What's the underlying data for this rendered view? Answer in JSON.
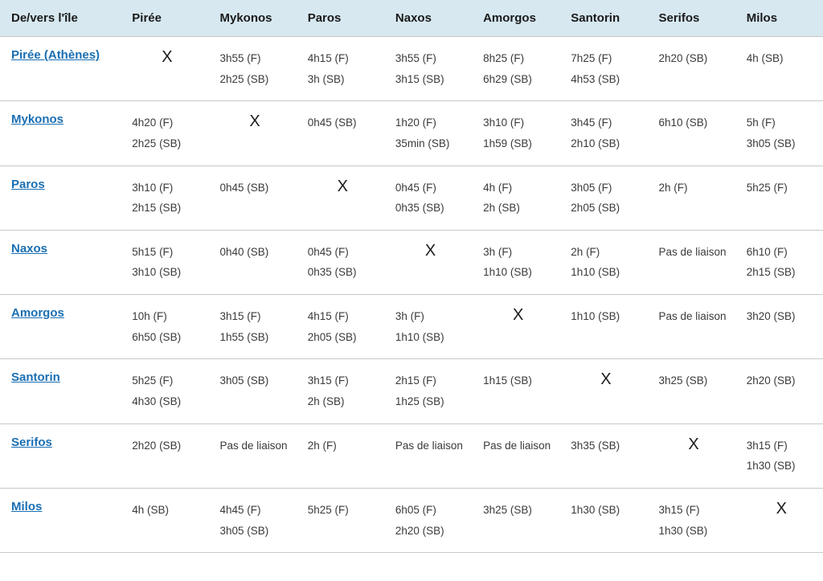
{
  "table": {
    "header_bg": "#d7e8f0",
    "border_color": "#c8c8c8",
    "link_color": "#1a6fb3",
    "text_color": "#2a2a2a",
    "font_family": "Segoe UI",
    "corner_label": "De/vers l'île",
    "columns": [
      "Pirée",
      "Mykonos",
      "Paros",
      "Naxos",
      "Amorgos",
      "Santorin",
      "Serifos",
      "Milos"
    ],
    "x_mark": "X",
    "rows": [
      {
        "label": "Pirée (Athènes)",
        "cells": [
          "X",
          [
            "3h55 (F)",
            "2h25 (SB)"
          ],
          [
            "4h15 (F)",
            "3h (SB)"
          ],
          [
            "3h55 (F)",
            "3h15 (SB)"
          ],
          [
            "8h25 (F)",
            "6h29 (SB)"
          ],
          [
            "7h25 (F)",
            "4h53 (SB)"
          ],
          [
            "2h20 (SB)"
          ],
          [
            "4h (SB)"
          ]
        ]
      },
      {
        "label": "Mykonos",
        "cells": [
          [
            "4h20 (F)",
            "2h25 (SB)"
          ],
          "X",
          [
            "0h45 (SB)"
          ],
          [
            "1h20 (F)",
            "35min (SB)"
          ],
          [
            "3h10 (F)",
            "1h59 (SB)"
          ],
          [
            "3h45 (F)",
            "2h10 (SB)"
          ],
          [
            "6h10 (SB)"
          ],
          [
            "5h (F)",
            "3h05 (SB)"
          ]
        ]
      },
      {
        "label": "Paros",
        "cells": [
          [
            "3h10 (F)",
            "2h15 (SB)"
          ],
          [
            "0h45 (SB)"
          ],
          "X",
          [
            "0h45 (F)",
            "0h35 (SB)"
          ],
          [
            "4h (F)",
            "2h (SB)"
          ],
          [
            "3h05 (F)",
            "2h05 (SB)"
          ],
          [
            "2h (F)"
          ],
          [
            "5h25 (F)"
          ]
        ]
      },
      {
        "label": "Naxos",
        "cells": [
          [
            "5h15 (F)",
            "3h10 (SB)"
          ],
          [
            "0h40 (SB)"
          ],
          [
            "0h45 (F)",
            "0h35 (SB)"
          ],
          "X",
          [
            "3h (F)",
            "1h10 (SB)"
          ],
          [
            "2h (F)",
            "1h10 (SB)"
          ],
          [
            "Pas de liaison"
          ],
          [
            "6h10 (F)",
            "2h15 (SB)"
          ]
        ]
      },
      {
        "label": "Amorgos",
        "cells": [
          [
            "10h (F)",
            "6h50 (SB)"
          ],
          [
            "3h15 (F)",
            "1h55 (SB)"
          ],
          [
            "4h15 (F)",
            "2h05 (SB)"
          ],
          [
            "3h (F)",
            "1h10 (SB)"
          ],
          "X",
          [
            "1h10 (SB)"
          ],
          [
            "Pas de liaison"
          ],
          [
            "3h20 (SB)"
          ]
        ]
      },
      {
        "label": "Santorin",
        "cells": [
          [
            "5h25 (F)",
            "4h30 (SB)"
          ],
          [
            "3h05 (SB)"
          ],
          [
            "3h15 (F)",
            "2h (SB)"
          ],
          [
            "2h15 (F)",
            "1h25 (SB)"
          ],
          [
            "1h15 (SB)"
          ],
          "X",
          [
            "3h25 (SB)"
          ],
          [
            "2h20 (SB)"
          ]
        ]
      },
      {
        "label": "Serifos",
        "cells": [
          [
            "2h20 (SB)"
          ],
          [
            "Pas de liaison"
          ],
          [
            "2h (F)"
          ],
          [
            "Pas de liaison"
          ],
          [
            "Pas de liaison"
          ],
          [
            "3h35 (SB)"
          ],
          "X",
          [
            "3h15 (F)",
            "1h30 (SB)"
          ]
        ]
      },
      {
        "label": "Milos",
        "cells": [
          [
            "4h (SB)"
          ],
          [
            "4h45 (F)",
            "3h05 (SB)"
          ],
          [
            "5h25 (F)"
          ],
          [
            "6h05 (F)",
            "2h20 (SB)"
          ],
          [
            "3h25 (SB)"
          ],
          [
            "1h30 (SB)"
          ],
          [
            "3h15 (F)",
            "1h30 (SB)"
          ],
          "X"
        ]
      }
    ]
  }
}
